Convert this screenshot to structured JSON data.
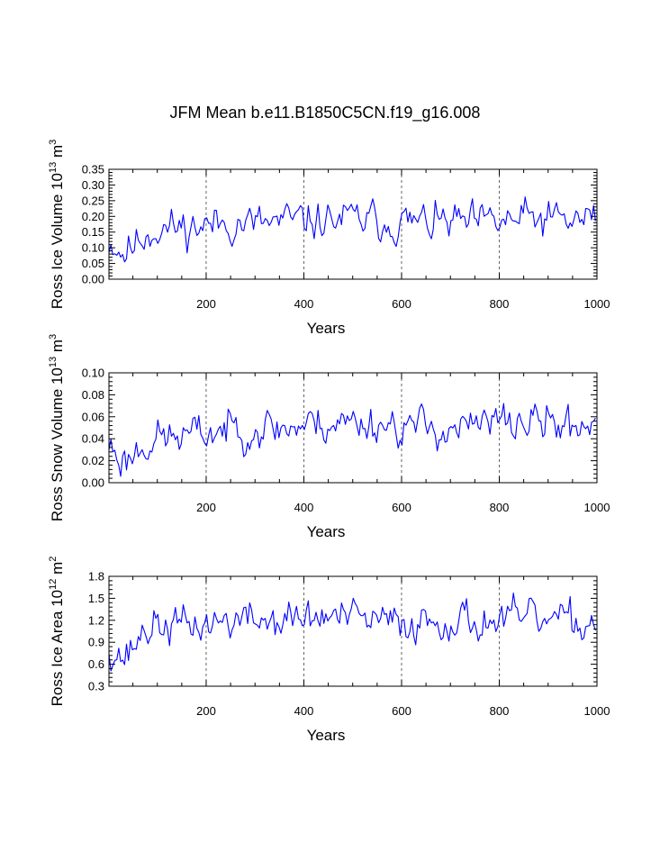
{
  "figure": {
    "title": "JFM Mean b.e11.B1850C5CN.f19_g16.008",
    "line_color": "#0000ff"
  },
  "chart_data": [
    {
      "type": "line",
      "title": "JFM Mean b.e11.B1850C5CN.f19_g16.008",
      "xlabel": "Years",
      "ylabel": "Ross Ice Volume",
      "ylabel_unit": "10",
      "ylabel_exp": "13",
      "ylabel_m": "m",
      "ylabel_m_exp": "3",
      "xlim": [
        1,
        1000
      ],
      "ylim": [
        0.0,
        0.35
      ],
      "xticks": [
        200,
        400,
        600,
        800,
        1000
      ],
      "xtick_labels": [
        "200",
        "400",
        "600",
        "800",
        "1000"
      ],
      "yticks": [
        0.0,
        0.05,
        0.1,
        0.15,
        0.2,
        0.25,
        0.3,
        0.35
      ],
      "ytick_labels": [
        "0.00",
        "0.05",
        "0.10",
        "0.15",
        "0.20",
        "0.25",
        "0.30",
        "0.35"
      ],
      "grid": "vertical dashed at 200,400,600,800",
      "series": [
        {
          "name": "Ross Ice Volume",
          "x": "years 1..1000 by 4",
          "anchors": [
            [
              1,
              0.12
            ],
            [
              10,
              0.115
            ],
            [
              20,
              0.1
            ],
            [
              30,
              0.085
            ],
            [
              40,
              0.09
            ],
            [
              60,
              0.12
            ],
            [
              80,
              0.15
            ],
            [
              100,
              0.16
            ],
            [
              150,
              0.165
            ],
            [
              200,
              0.17
            ],
            [
              250,
              0.18
            ],
            [
              300,
              0.175
            ],
            [
              350,
              0.18
            ],
            [
              400,
              0.185
            ],
            [
              450,
              0.19
            ],
            [
              500,
              0.19
            ],
            [
              550,
              0.185
            ],
            [
              600,
              0.18
            ],
            [
              650,
              0.18
            ],
            [
              700,
              0.18
            ],
            [
              750,
              0.175
            ],
            [
              800,
              0.18
            ],
            [
              850,
              0.19
            ],
            [
              900,
              0.19
            ],
            [
              950,
              0.185
            ],
            [
              1000,
              0.2
            ]
          ],
          "amp": 0.045,
          "min": 0.035,
          "max": 0.3,
          "seed": 11
        }
      ]
    },
    {
      "type": "line",
      "xlabel": "Years",
      "ylabel": "Ross Snow Volume",
      "ylabel_unit": "10",
      "ylabel_exp": "13",
      "ylabel_m": "m",
      "ylabel_m_exp": "3",
      "xlim": [
        1,
        1000
      ],
      "ylim": [
        0.0,
        0.1
      ],
      "xticks": [
        200,
        400,
        600,
        800,
        1000
      ],
      "xtick_labels": [
        "200",
        "400",
        "600",
        "800",
        "1000"
      ],
      "yticks": [
        0.0,
        0.02,
        0.04,
        0.06,
        0.08,
        0.1
      ],
      "ytick_labels": [
        "0.00",
        "0.02",
        "0.04",
        "0.06",
        "0.08",
        "0.10"
      ],
      "grid": "vertical dashed at 200,400,600,800",
      "series": [
        {
          "name": "Ross Snow Volume",
          "x": "years 1..1000 by 4",
          "anchors": [
            [
              1,
              0.035
            ],
            [
              10,
              0.03
            ],
            [
              20,
              0.025
            ],
            [
              30,
              0.02
            ],
            [
              40,
              0.022
            ],
            [
              60,
              0.03
            ],
            [
              80,
              0.038
            ],
            [
              100,
              0.04
            ],
            [
              150,
              0.042
            ],
            [
              200,
              0.045
            ],
            [
              250,
              0.05
            ],
            [
              300,
              0.05
            ],
            [
              350,
              0.05
            ],
            [
              400,
              0.052
            ],
            [
              450,
              0.055
            ],
            [
              500,
              0.055
            ],
            [
              550,
              0.055
            ],
            [
              600,
              0.052
            ],
            [
              650,
              0.05
            ],
            [
              700,
              0.05
            ],
            [
              750,
              0.05
            ],
            [
              800,
              0.055
            ],
            [
              850,
              0.055
            ],
            [
              900,
              0.055
            ],
            [
              950,
              0.05
            ],
            [
              1000,
              0.058
            ]
          ],
          "amp": 0.013,
          "min": 0.004,
          "max": 0.09,
          "seed": 23
        }
      ]
    },
    {
      "type": "line",
      "xlabel": "Years",
      "ylabel": "Ross Ice Area",
      "ylabel_unit": "10",
      "ylabel_exp": "12",
      "ylabel_m": "m",
      "ylabel_m_exp": "2",
      "xlim": [
        1,
        1000
      ],
      "ylim": [
        0.3,
        1.8
      ],
      "xticks": [
        200,
        400,
        600,
        800,
        1000
      ],
      "xtick_labels": [
        "200",
        "400",
        "600",
        "800",
        "1000"
      ],
      "yticks": [
        0.3,
        0.6,
        0.9,
        1.2,
        1.5,
        1.8
      ],
      "ytick_labels": [
        "0.3",
        "0.6",
        "0.9",
        "1.2",
        "1.5",
        "1.8"
      ],
      "grid": "vertical dashed at 200,400,600,800",
      "series": [
        {
          "name": "Ross Ice Area",
          "x": "years 1..1000 by 4",
          "anchors": [
            [
              1,
              0.85
            ],
            [
              10,
              0.8
            ],
            [
              20,
              0.75
            ],
            [
              30,
              0.7
            ],
            [
              40,
              0.72
            ],
            [
              60,
              0.95
            ],
            [
              80,
              1.1
            ],
            [
              100,
              1.12
            ],
            [
              150,
              1.12
            ],
            [
              200,
              1.15
            ],
            [
              250,
              1.2
            ],
            [
              300,
              1.2
            ],
            [
              350,
              1.2
            ],
            [
              400,
              1.22
            ],
            [
              450,
              1.25
            ],
            [
              500,
              1.22
            ],
            [
              550,
              1.18
            ],
            [
              600,
              1.15
            ],
            [
              650,
              1.2
            ],
            [
              700,
              1.22
            ],
            [
              750,
              1.18
            ],
            [
              800,
              1.2
            ],
            [
              850,
              1.2
            ],
            [
              900,
              1.2
            ],
            [
              950,
              1.15
            ],
            [
              1000,
              1.2
            ]
          ],
          "amp": 0.19,
          "min": 0.36,
          "max": 1.72,
          "seed": 37
        }
      ]
    }
  ]
}
